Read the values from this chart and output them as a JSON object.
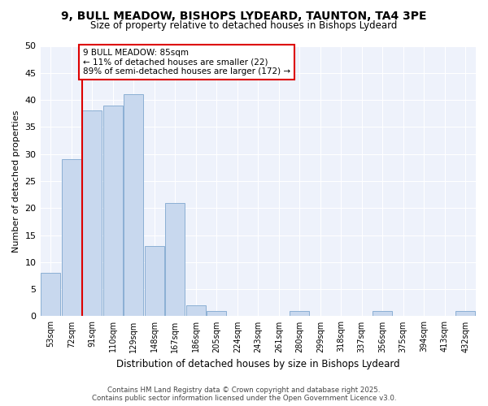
{
  "title": "9, BULL MEADOW, BISHOPS LYDEARD, TAUNTON, TA4 3PE",
  "subtitle": "Size of property relative to detached houses in Bishops Lydeard",
  "xlabel": "Distribution of detached houses by size in Bishops Lydeard",
  "ylabel": "Number of detached properties",
  "bar_labels": [
    "53sqm",
    "72sqm",
    "91sqm",
    "110sqm",
    "129sqm",
    "148sqm",
    "167sqm",
    "186sqm",
    "205sqm",
    "224sqm",
    "243sqm",
    "261sqm",
    "280sqm",
    "299sqm",
    "318sqm",
    "337sqm",
    "356sqm",
    "375sqm",
    "394sqm",
    "413sqm",
    "432sqm"
  ],
  "bar_values": [
    8,
    29,
    38,
    39,
    41,
    13,
    21,
    2,
    1,
    0,
    0,
    0,
    1,
    0,
    0,
    0,
    1,
    0,
    0,
    0,
    1
  ],
  "bar_color": "#c8d8ee",
  "bar_edge_color": "#8bafd4",
  "vline_color": "#dd0000",
  "annotation_text": "9 BULL MEADOW: 85sqm\n← 11% of detached houses are smaller (22)\n89% of semi-detached houses are larger (172) →",
  "annotation_box_facecolor": "#ffffff",
  "annotation_box_edgecolor": "#dd0000",
  "ylim": [
    0,
    50
  ],
  "yticks": [
    0,
    5,
    10,
    15,
    20,
    25,
    30,
    35,
    40,
    45,
    50
  ],
  "bg_color": "#eef2fb",
  "grid_color": "#ffffff",
  "footer_line1": "Contains HM Land Registry data © Crown copyright and database right 2025.",
  "footer_line2": "Contains public sector information licensed under the Open Government Licence v3.0."
}
